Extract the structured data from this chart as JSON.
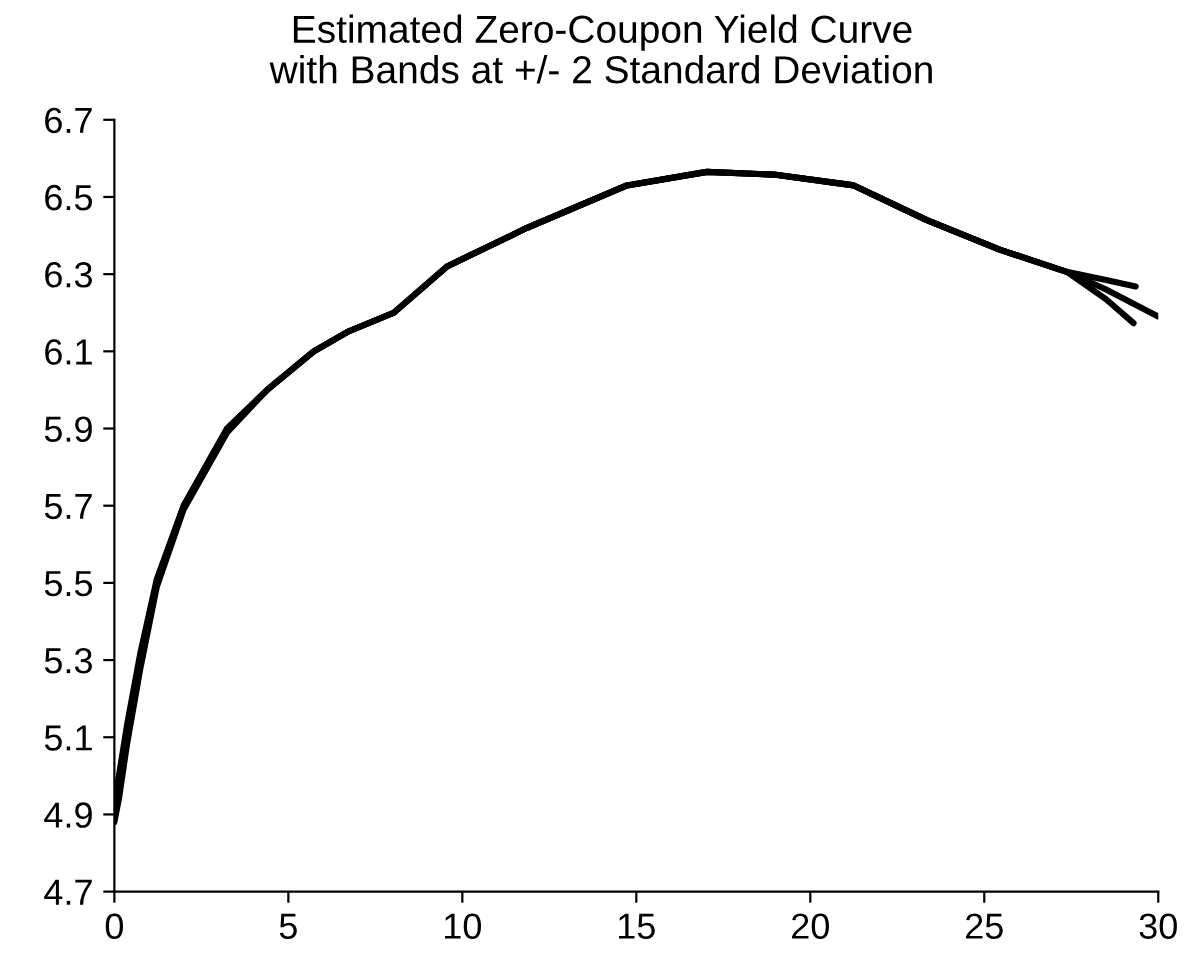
{
  "chart_data": {
    "type": "line",
    "title": "Estimated Zero-Coupon Yield Curve\nwith Bands at +/- 2 Standard Deviation",
    "series": [
      {
        "color": "#000000",
        "x": [
          0,
          0.13,
          0.36,
          0.75,
          1.22,
          1.99,
          3.24,
          4.39,
          5.73,
          6.69,
          8.03,
          9.56,
          11.86,
          14.73,
          17.03,
          18.95,
          21.25,
          23.35,
          25.46,
          27.37,
          28.5,
          29.35
        ],
        "values": [
          4.95,
          5.0,
          5.13,
          5.32,
          5.51,
          5.7,
          5.9,
          6.0,
          6.1,
          6.15,
          6.2,
          6.32,
          6.42,
          6.53,
          6.565,
          6.558,
          6.53,
          6.44,
          6.363,
          6.306,
          6.285,
          6.268
        ]
      },
      {
        "color": "#000000",
        "x": [
          0,
          0.13,
          0.36,
          0.75,
          1.22,
          1.99,
          3.24,
          4.39,
          5.73,
          6.69,
          8.03,
          9.56,
          11.86,
          14.73,
          17.03,
          18.95,
          21.25,
          23.35,
          25.46,
          27.37,
          28.5,
          30
        ],
        "values": [
          4.9,
          4.96,
          5.1,
          5.3,
          5.5,
          5.7,
          5.9,
          6.0,
          6.1,
          6.15,
          6.2,
          6.32,
          6.42,
          6.53,
          6.565,
          6.558,
          6.53,
          6.44,
          6.363,
          6.306,
          6.26,
          6.19
        ]
      },
      {
        "color": "#000000",
        "x": [
          0,
          0.13,
          0.36,
          0.75,
          1.22,
          1.99,
          3.24,
          4.39,
          5.73,
          6.69,
          8.03,
          9.56,
          11.86,
          14.73,
          17.03,
          18.95,
          21.25,
          23.35,
          25.46,
          27.37,
          28.5,
          29.29
        ],
        "values": [
          4.88,
          4.94,
          5.08,
          5.28,
          5.49,
          5.69,
          5.89,
          6.0,
          6.1,
          6.15,
          6.2,
          6.32,
          6.42,
          6.53,
          6.565,
          6.558,
          6.53,
          6.44,
          6.363,
          6.306,
          6.235,
          6.173
        ]
      }
    ],
    "xlim": [
      0,
      30
    ],
    "xticks": [
      0,
      5,
      10,
      15,
      20,
      25,
      30
    ],
    "ylim": [
      4.7,
      6.7
    ],
    "yticks": [
      4.7,
      4.9,
      5.1,
      5.3,
      5.5,
      5.7,
      5.9,
      6.1,
      6.3,
      6.5,
      6.7
    ],
    "grid": false,
    "legend": false,
    "marker": "none",
    "line_style": "solid"
  }
}
